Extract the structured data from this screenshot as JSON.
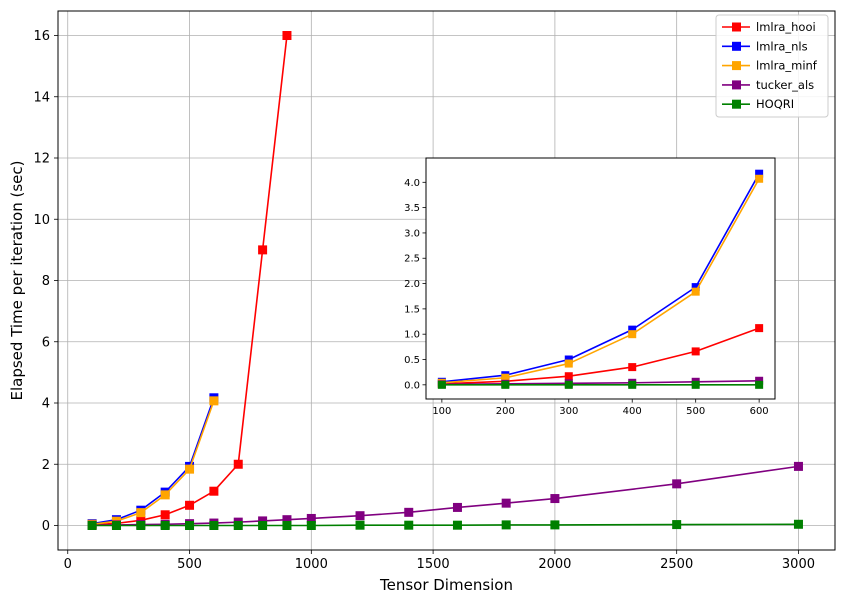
{
  "chart_data": {
    "type": "line",
    "xlabel": "Tensor Dimension",
    "ylabel": "Elapsed Time per iteration (sec)",
    "xlim": [
      -40,
      3150
    ],
    "ylim": [
      -0.8,
      16.8
    ],
    "xticks": [
      0,
      500,
      1000,
      1500,
      2000,
      2500,
      3000
    ],
    "yticks": [
      0,
      2,
      4,
      6,
      8,
      10,
      12,
      14,
      16
    ],
    "grid": true,
    "legend_position": "top-right",
    "marker": "square",
    "series": [
      {
        "name": "lmlra_hooi",
        "color": "#ff0000",
        "x": [
          100,
          200,
          300,
          400,
          500,
          600,
          700,
          800,
          900
        ],
        "y": [
          0.02,
          0.07,
          0.17,
          0.35,
          0.66,
          1.12,
          2.0,
          9.0,
          16.0
        ]
      },
      {
        "name": "lmlra_nls",
        "color": "#0000ff",
        "x": [
          100,
          200,
          300,
          400,
          500,
          600
        ],
        "y": [
          0.06,
          0.19,
          0.5,
          1.09,
          1.93,
          4.17
        ]
      },
      {
        "name": "lmlra_minf",
        "color": "#ffa500",
        "x": [
          100,
          200,
          300,
          400,
          500,
          600
        ],
        "y": [
          0.04,
          0.14,
          0.42,
          1.0,
          1.84,
          4.07
        ]
      },
      {
        "name": "tucker_als",
        "color": "#800080",
        "x": [
          100,
          200,
          300,
          400,
          500,
          600,
          700,
          800,
          900,
          1000,
          1200,
          1400,
          1600,
          1800,
          2000,
          2500,
          3000
        ],
        "y": [
          0.01,
          0.02,
          0.03,
          0.04,
          0.06,
          0.08,
          0.11,
          0.15,
          0.19,
          0.23,
          0.32,
          0.43,
          0.59,
          0.73,
          0.88,
          1.36,
          1.93
        ]
      },
      {
        "name": "HOQRI",
        "color": "#008000",
        "x": [
          100,
          200,
          300,
          400,
          500,
          600,
          700,
          800,
          900,
          1000,
          1200,
          1400,
          1600,
          1800,
          2000,
          2500,
          3000
        ],
        "y": [
          0.0,
          0.0,
          0.0,
          0.0,
          0.0,
          0.0,
          0.0,
          0.0,
          0.0,
          0.0,
          0.01,
          0.01,
          0.01,
          0.02,
          0.02,
          0.03,
          0.04
        ]
      }
    ],
    "inset": {
      "xlim": [
        75,
        625
      ],
      "ylim": [
        -0.28,
        4.48
      ],
      "xticks": [
        100,
        200,
        300,
        400,
        500,
        600
      ],
      "yticks": [
        0.0,
        0.5,
        1.0,
        1.5,
        2.0,
        2.5,
        3.0,
        3.5,
        4.0
      ],
      "ytick_labels": [
        "0.0",
        "0.5",
        "1.0",
        "1.5",
        "2.0",
        "2.5",
        "3.0",
        "3.5",
        "4.0"
      ],
      "grid": false,
      "x_max": 600
    }
  }
}
